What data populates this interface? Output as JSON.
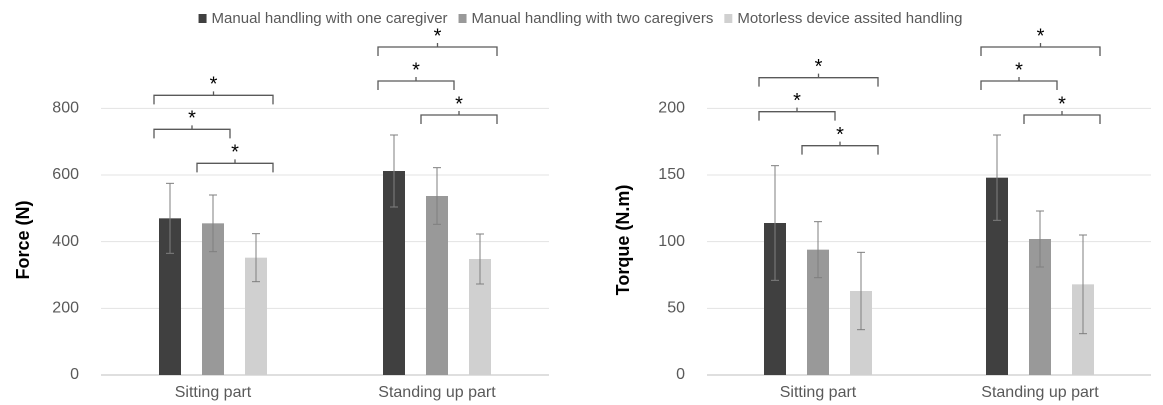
{
  "chart_data": [
    {
      "type": "bar",
      "ylabel": "Force (N)",
      "categories": [
        "Sitting part",
        "Standing up part"
      ],
      "series": [
        {
          "name": "Manual handling with one caregiver",
          "color": "#404040",
          "values": [
            470,
            612
          ],
          "errors": [
            105,
            108
          ]
        },
        {
          "name": "Manual handling with two caregivers",
          "color": "#999999",
          "values": [
            455,
            537
          ],
          "errors": [
            85,
            85
          ]
        },
        {
          "name": "Motorless device assited handling",
          "color": "#d0d0d0",
          "values": [
            352,
            348
          ],
          "errors": [
            72,
            75
          ]
        }
      ],
      "ylim": [
        0,
        900
      ],
      "yticks": [
        0,
        200,
        400,
        600,
        800
      ],
      "grid": true,
      "significance": [
        {
          "category": 0,
          "pair": [
            1,
            2
          ],
          "text": "*"
        },
        {
          "category": 0,
          "pair": [
            0,
            1
          ],
          "text": "*"
        },
        {
          "category": 0,
          "pair": [
            0,
            2
          ],
          "text": "*"
        },
        {
          "category": 1,
          "pair": [
            1,
            2
          ],
          "text": "*"
        },
        {
          "category": 1,
          "pair": [
            0,
            1
          ],
          "text": "*"
        },
        {
          "category": 1,
          "pair": [
            0,
            2
          ],
          "text": "*"
        }
      ]
    },
    {
      "type": "bar",
      "ylabel": "Torque (N.m)",
      "categories": [
        "Sitting part",
        "Standing up part"
      ],
      "series": [
        {
          "color": "#404040",
          "values": [
            114,
            148
          ],
          "errors": [
            43,
            32
          ]
        },
        {
          "color": "#999999",
          "values": [
            94,
            102
          ],
          "errors": [
            21,
            21
          ]
        },
        {
          "color": "#d0d0d0",
          "values": [
            63,
            68
          ],
          "errors": [
            29,
            37
          ]
        }
      ],
      "ylim": [
        0,
        225
      ],
      "yticks": [
        0,
        50,
        100,
        150,
        200
      ],
      "grid": true,
      "significance": [
        {
          "category": 0,
          "pair": [
            1,
            2
          ],
          "text": "*"
        },
        {
          "category": 0,
          "pair": [
            0,
            1
          ],
          "text": "*"
        },
        {
          "category": 0,
          "pair": [
            0,
            2
          ],
          "text": "*"
        },
        {
          "category": 1,
          "pair": [
            1,
            2
          ],
          "text": "*"
        },
        {
          "category": 1,
          "pair": [
            0,
            1
          ],
          "text": "*"
        },
        {
          "category": 1,
          "pair": [
            0,
            2
          ],
          "text": "*"
        }
      ]
    }
  ]
}
